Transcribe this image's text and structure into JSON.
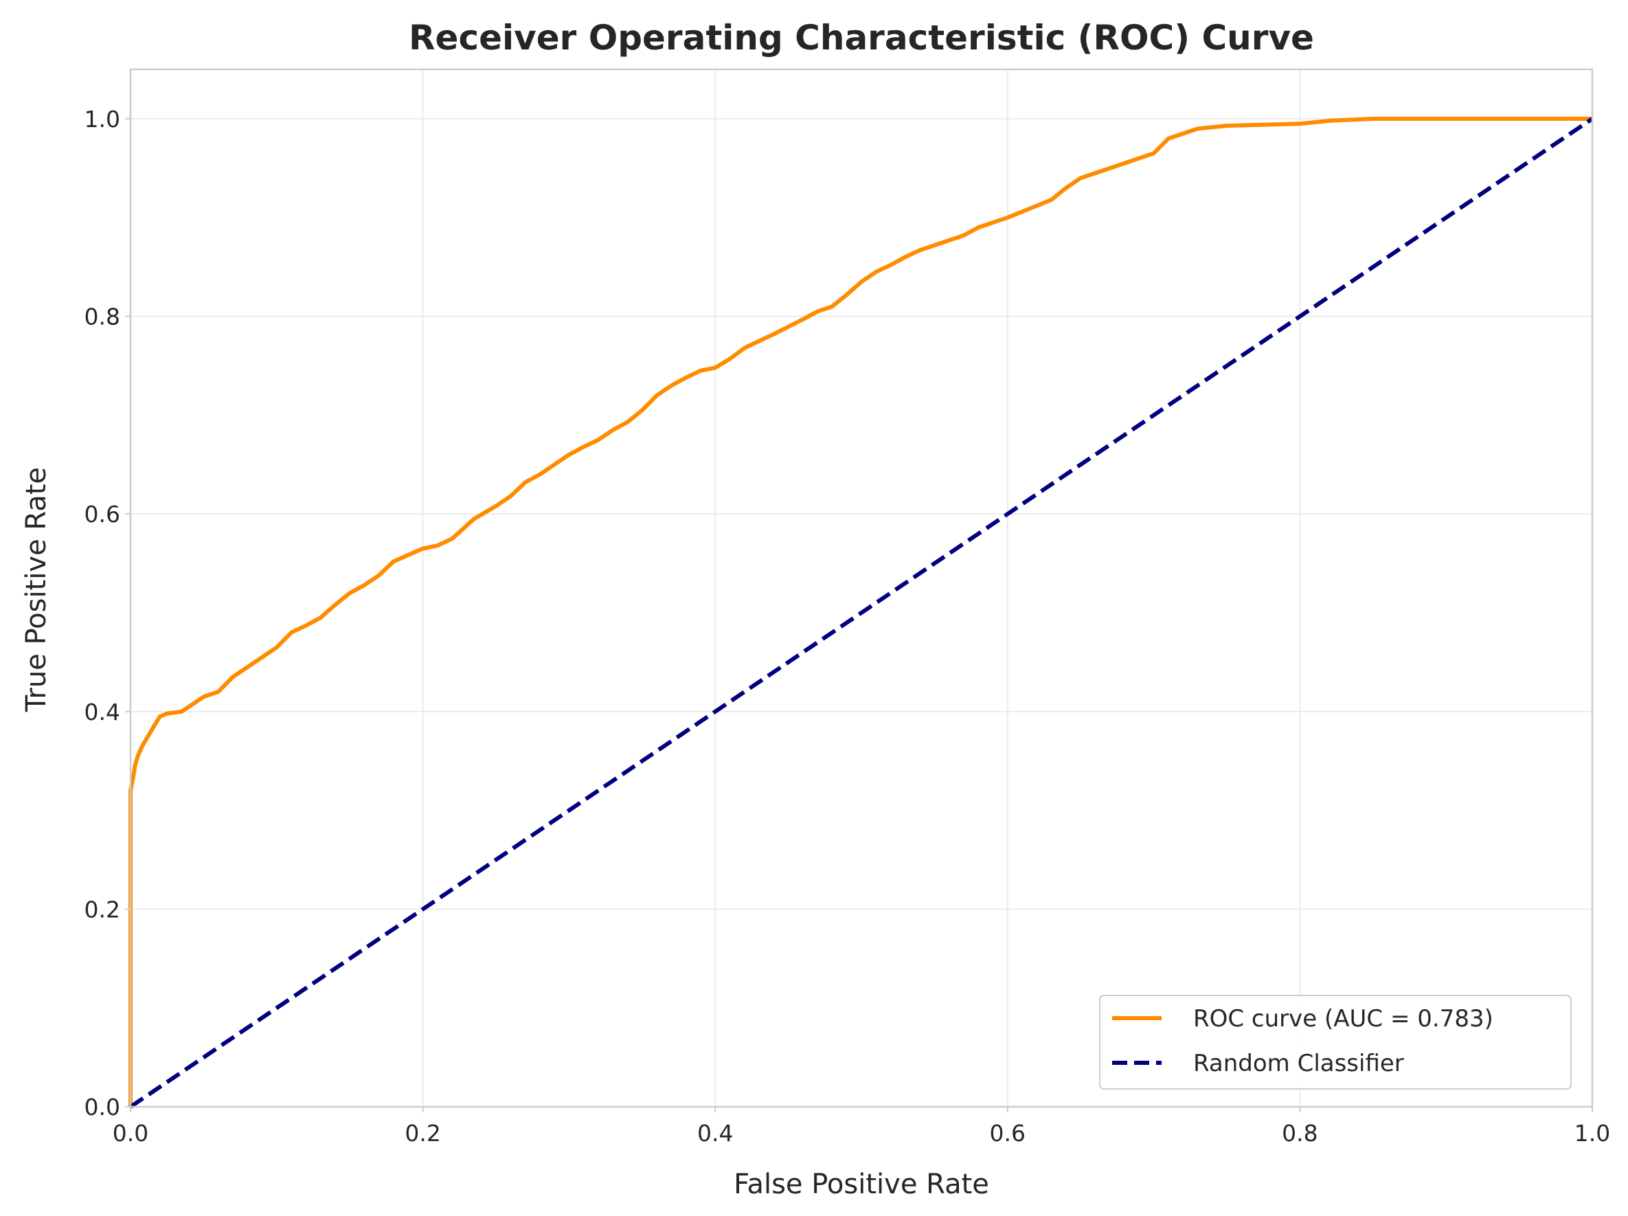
{
  "chart_data": {
    "type": "line",
    "title": "Receiver Operating Characteristic (ROC) Curve",
    "xlabel": "False Positive Rate",
    "ylabel": "True Positive Rate",
    "xlim": [
      0.0,
      1.0
    ],
    "ylim": [
      0.0,
      1.05
    ],
    "xticks": [
      "0.0",
      "0.2",
      "0.4",
      "0.6",
      "0.8",
      "1.0"
    ],
    "yticks": [
      "0.0",
      "0.2",
      "0.4",
      "0.6",
      "0.8",
      "1.0"
    ],
    "grid": true,
    "legend_position": "lower-right",
    "series": [
      {
        "name": "ROC curve (AUC = 0.783)",
        "color": "#ff8c00",
        "style": "solid",
        "x": [
          0.0,
          0.0,
          0.0,
          0.002,
          0.003,
          0.005,
          0.008,
          0.012,
          0.016,
          0.02,
          0.025,
          0.035,
          0.04,
          0.05,
          0.06,
          0.07,
          0.08,
          0.09,
          0.1,
          0.11,
          0.12,
          0.13,
          0.14,
          0.15,
          0.16,
          0.17,
          0.18,
          0.2,
          0.21,
          0.22,
          0.235,
          0.25,
          0.26,
          0.27,
          0.28,
          0.29,
          0.3,
          0.31,
          0.32,
          0.33,
          0.34,
          0.35,
          0.36,
          0.37,
          0.38,
          0.39,
          0.4,
          0.41,
          0.42,
          0.44,
          0.46,
          0.47,
          0.48,
          0.49,
          0.5,
          0.51,
          0.52,
          0.53,
          0.54,
          0.55,
          0.56,
          0.57,
          0.58,
          0.6,
          0.61,
          0.62,
          0.63,
          0.64,
          0.65,
          0.66,
          0.67,
          0.68,
          0.69,
          0.7,
          0.71,
          0.72,
          0.73,
          0.75,
          0.8,
          0.82,
          0.85,
          0.9,
          1.0
        ],
        "y": [
          0.0,
          0.2,
          0.32,
          0.335,
          0.345,
          0.355,
          0.365,
          0.375,
          0.385,
          0.395,
          0.398,
          0.4,
          0.405,
          0.415,
          0.42,
          0.435,
          0.445,
          0.455,
          0.465,
          0.48,
          0.487,
          0.495,
          0.508,
          0.52,
          0.528,
          0.538,
          0.552,
          0.565,
          0.568,
          0.575,
          0.595,
          0.608,
          0.618,
          0.632,
          0.64,
          0.65,
          0.66,
          0.668,
          0.675,
          0.685,
          0.693,
          0.705,
          0.72,
          0.73,
          0.738,
          0.745,
          0.748,
          0.757,
          0.768,
          0.782,
          0.797,
          0.805,
          0.81,
          0.822,
          0.835,
          0.845,
          0.852,
          0.86,
          0.867,
          0.872,
          0.877,
          0.882,
          0.89,
          0.9,
          0.906,
          0.912,
          0.918,
          0.93,
          0.94,
          0.945,
          0.95,
          0.955,
          0.96,
          0.965,
          0.98,
          0.985,
          0.99,
          0.993,
          0.995,
          0.998,
          1.0,
          1.0,
          1.0
        ]
      },
      {
        "name": "Random Classifier",
        "color": "#000080",
        "style": "dashed",
        "x": [
          0.0,
          1.0
        ],
        "y": [
          0.0,
          1.0
        ]
      }
    ]
  }
}
